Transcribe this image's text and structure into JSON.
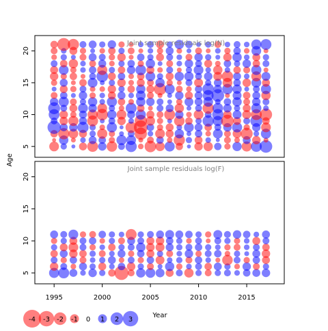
{
  "chart_data": [
    {
      "type": "scatter",
      "subtype": "bubble",
      "title": "Joint sample residuals log(N)",
      "xlabel": "",
      "ylabel": "Age",
      "xlim": [
        1993.0,
        2018.9
      ],
      "ylim": [
        3.3,
        22.4
      ],
      "x_ticks": [
        1995,
        2000,
        2005,
        2010,
        2015
      ],
      "y_ticks": [
        5,
        10,
        15,
        20
      ],
      "x_range": [
        1995,
        2017
      ],
      "y_range": [
        5,
        21
      ],
      "positive_color": "#0000ff",
      "negative_color": "#ff0000",
      "residuals": [
        [
          -1.2,
          0.5,
          0.2,
          -0.8,
          -1.5,
          0.9,
          -1.4,
          0.6,
          1.6,
          -0.4,
          -1.7,
          -1.1,
          1.3,
          -0.7,
          0.2,
          -0.9,
          -1.1,
          0.7,
          -0.5,
          1.1,
          -1.3,
          1.5,
          2.0
        ],
        [
          -0.2,
          1.1,
          -0.3,
          0.4,
          0.8,
          0.7,
          -0.5,
          1.3,
          1.2,
          -0.3,
          -0.6,
          0.7,
          -0.4,
          -1.6,
          0.5,
          -0.8,
          0.4,
          0.2,
          -0.6,
          -0.4,
          0.8,
          -0.9,
          -0.3
        ],
        [
          -0.7,
          -1.6,
          -1.2,
          -0.8,
          0.5,
          -1.3,
          -0.5,
          0.3,
          0.6,
          -1.9,
          0.4,
          -1.2,
          -0.8,
          1.1,
          0.3,
          0.7,
          -0.4,
          1.2,
          -0.6,
          -1.0,
          -1.8,
          0.4,
          1.3
        ],
        [
          2.2,
          0.8,
          0.9,
          1.6,
          0.5,
          -0.4,
          1.3,
          0.2,
          -1.6,
          -2.4,
          0.7,
          -0.5,
          -0.8,
          0.4,
          1.2,
          0.8,
          -0.7,
          0.6,
          0.9,
          1.3,
          -0.5,
          0.9,
          -1.2
        ],
        [
          0.6,
          -0.9,
          -1.3,
          0.8,
          -1.5,
          0.3,
          0.6,
          -0.9,
          0.4,
          -1.9,
          -1.1,
          -0.5,
          0.3,
          -1.4,
          -0.7,
          0.5,
          1.6,
          1.3,
          -2.0,
          -0.8,
          0.6,
          1.8,
          -0.7
        ],
        [
          1.5,
          -0.9,
          -0.5,
          0.8,
          -1.3,
          -1.7,
          1.1,
          -1.2,
          0.8,
          1.3,
          -0.8,
          -0.6,
          -1.5,
          0.9,
          -0.4,
          -1.2,
          0.6,
          1.6,
          -0.9,
          1.0,
          -1.0,
          -1.5,
          -1.9
        ],
        [
          1.8,
          0.6,
          -0.8,
          1.2,
          0.9,
          -1.2,
          0.5,
          -0.4,
          1.5,
          -0.7,
          -0.3,
          0.6,
          0.8,
          -1.1,
          0.3,
          0.6,
          -1.6,
          1.4,
          0.9,
          0.5,
          -0.8,
          1.3,
          0.4
        ],
        [
          0.9,
          1.3,
          -0.6,
          0.5,
          1.1,
          0.4,
          1.3,
          -0.7,
          -0.4,
          1.1,
          0.9,
          0.6,
          0.3,
          -0.5,
          1.0,
          0.8,
          1.2,
          0.4,
          0.7,
          1.1,
          -0.6,
          0.9,
          0.6
        ],
        [
          -0.6,
          0.7,
          0.3,
          0.9,
          -0.5,
          0.4,
          -0.8,
          0.8,
          0.4,
          1.2,
          -0.6,
          -0.3,
          0.3,
          0.9,
          -0.8,
          0.8,
          1.5,
          2.0,
          -0.3,
          1.0,
          -0.7,
          0.8,
          -1.1
        ],
        [
          0.3,
          -0.8,
          -0.5,
          0.6,
          -0.4,
          -0.4,
          -0.9,
          0.5,
          -0.7,
          1.1,
          -0.8,
          -1.9,
          1.3,
          -0.6,
          -0.4,
          0.7,
          1.7,
          0.9,
          1.4,
          1.1,
          0.3,
          0.6,
          1.3
        ],
        [
          -0.5,
          0.8,
          -0.3,
          -0.7,
          1.2,
          0.3,
          0.5,
          -0.9,
          -0.4,
          -0.8,
          -0.6,
          1.1,
          -0.5,
          -0.3,
          0.6,
          -1.0,
          0.5,
          0.8,
          -1.2,
          0.7,
          -0.9,
          1.2,
          -0.8
        ],
        [
          -0.9,
          -0.5,
          -0.7,
          -0.3,
          0.6,
          1.7,
          -0.8,
          0.7,
          -0.4,
          -0.7,
          1.2,
          0.5,
          -0.8,
          1.1,
          1.1,
          0.6,
          0.9,
          -1.0,
          -1.6,
          0.8,
          0.4,
          -1.3,
          1.0
        ],
        [
          -0.8,
          1.2,
          -0.5,
          0.4,
          0.7,
          -1.3,
          0.5,
          -0.7,
          0.9,
          1.4,
          -0.8,
          -0.4,
          0.6,
          -0.3,
          0.5,
          1.2,
          0.4,
          -1.1,
          0.4,
          -0.7,
          -0.6,
          1.3,
          -0.3
        ],
        [
          0.6,
          -0.7,
          -1.1,
          0.4,
          -0.6,
          0.8,
          -0.4,
          0.5,
          0.7,
          -0.5,
          1.1,
          0.3,
          -0.6,
          0.4,
          0.9,
          0.6,
          -0.8,
          -0.4,
          0.7,
          0.5,
          0.9,
          -0.7,
          0.6
        ],
        [
          -0.4,
          0.5,
          0.3,
          -0.6,
          0.8,
          0.6,
          -0.5,
          -0.9,
          -0.3,
          0.7,
          0.5,
          -0.8,
          0.6,
          0.4,
          -0.6,
          0.9,
          0.5,
          0.3,
          -0.9,
          1.1,
          0.4,
          -0.8,
          0.5
        ],
        [
          -0.6,
          0.4,
          -0.8,
          -0.5,
          0.3,
          -0.4,
          -0.7,
          0.5,
          -0.6,
          -0.3,
          0.4,
          -0.5,
          0.8,
          -0.4,
          0.3,
          -0.6,
          -0.3,
          0.4,
          -0.5,
          0.7,
          -0.4,
          1.2,
          -0.3
        ],
        [
          -0.7,
          -2.1,
          -1.6,
          0.6,
          0.8,
          0.5,
          0.9,
          -0.5,
          -0.3,
          0.4,
          0.6,
          -0.8,
          0.5,
          1.1,
          0.7,
          0.3,
          0.5,
          -0.6,
          0.4,
          0.6,
          0.4,
          1.3,
          1.5
        ]
      ]
    },
    {
      "type": "scatter",
      "subtype": "bubble",
      "title": "Joint sample residuals log(F)",
      "xlabel": "Year",
      "ylabel": "Age",
      "xlim": [
        1993.0,
        2018.9
      ],
      "ylim": [
        3.3,
        22.4
      ],
      "x_ticks": [
        1995,
        2000,
        2005,
        2010,
        2015
      ],
      "y_ticks": [
        5,
        10,
        15,
        20
      ],
      "x_range": [
        1995,
        2017
      ],
      "y_range": [
        5,
        11
      ],
      "positive_color": "#0000ff",
      "negative_color": "#ff0000",
      "residuals": [
        [
          1.3,
          1.5,
          0.8,
          0.4,
          0.9,
          0.5,
          -0.7,
          -2.5,
          -0.6,
          1.1,
          1.2,
          1.0,
          -0.8,
          0.6,
          -1.1,
          0.5,
          -0.6,
          0.5,
          0.6,
          0.4,
          0.7,
          0.8,
          0.9
        ],
        [
          -0.9,
          0.6,
          -0.4,
          0.8,
          0.5,
          -0.8,
          0.4,
          0.7,
          -0.9,
          0.5,
          -0.6,
          0.3,
          1.1,
          -0.5,
          0.4,
          0.6,
          -0.7,
          0.8,
          0.5,
          -0.4,
          0.9,
          -0.6,
          0.5
        ],
        [
          0.6,
          -0.5,
          0.7,
          -0.6,
          0.4,
          0.5,
          0.8,
          -0.4,
          0.6,
          -0.5,
          0.7,
          -1.0,
          0.4,
          0.5,
          -0.6,
          0.7,
          0.4,
          -0.3,
          -1.4,
          0.6,
          -0.5,
          0.7,
          -0.8
        ],
        [
          -0.7,
          0.8,
          -0.9,
          -0.7,
          0.5,
          -0.6,
          0.4,
          0.8,
          -0.5,
          0.7,
          -0.8,
          0.5,
          -0.6,
          0.4,
          0.9,
          -0.5,
          0.6,
          0.7,
          -0.4,
          0.5,
          0.3,
          0.8,
          -0.9
        ],
        [
          0.5,
          -0.8,
          -1.2,
          0.6,
          -0.5,
          0.4,
          -0.7,
          0.5,
          0.6,
          1.1,
          -0.9,
          -1.0,
          0.8,
          0.5,
          0.6,
          0.7,
          0.5,
          0.4,
          -0.5,
          -0.6,
          0.4,
          0.6,
          -0.7
        ],
        [
          -0.5,
          0.5,
          -0.8,
          0.6,
          0.7,
          -0.4,
          0.5,
          -0.6,
          0.8,
          0.6,
          -0.8,
          -0.9,
          0.7,
          0.5,
          -0.4,
          0.6,
          -0.3,
          0.6,
          0.5,
          -0.5,
          0.4,
          -0.8,
          0.6
        ],
        [
          0.8,
          0.6,
          1.2,
          -0.5,
          -0.6,
          0.7,
          0.5,
          0.4,
          -1.5,
          0.5,
          0.6,
          0.8,
          1.0,
          0.8,
          0.7,
          0.5,
          -0.5,
          1.0,
          0.6,
          0.9,
          0.7,
          0.4,
          0.8
        ]
      ]
    }
  ],
  "legend": {
    "values": [
      "-4",
      "-3",
      "-2",
      "-1",
      "0",
      "1",
      "2",
      "3"
    ],
    "placement": "bottom-left"
  }
}
